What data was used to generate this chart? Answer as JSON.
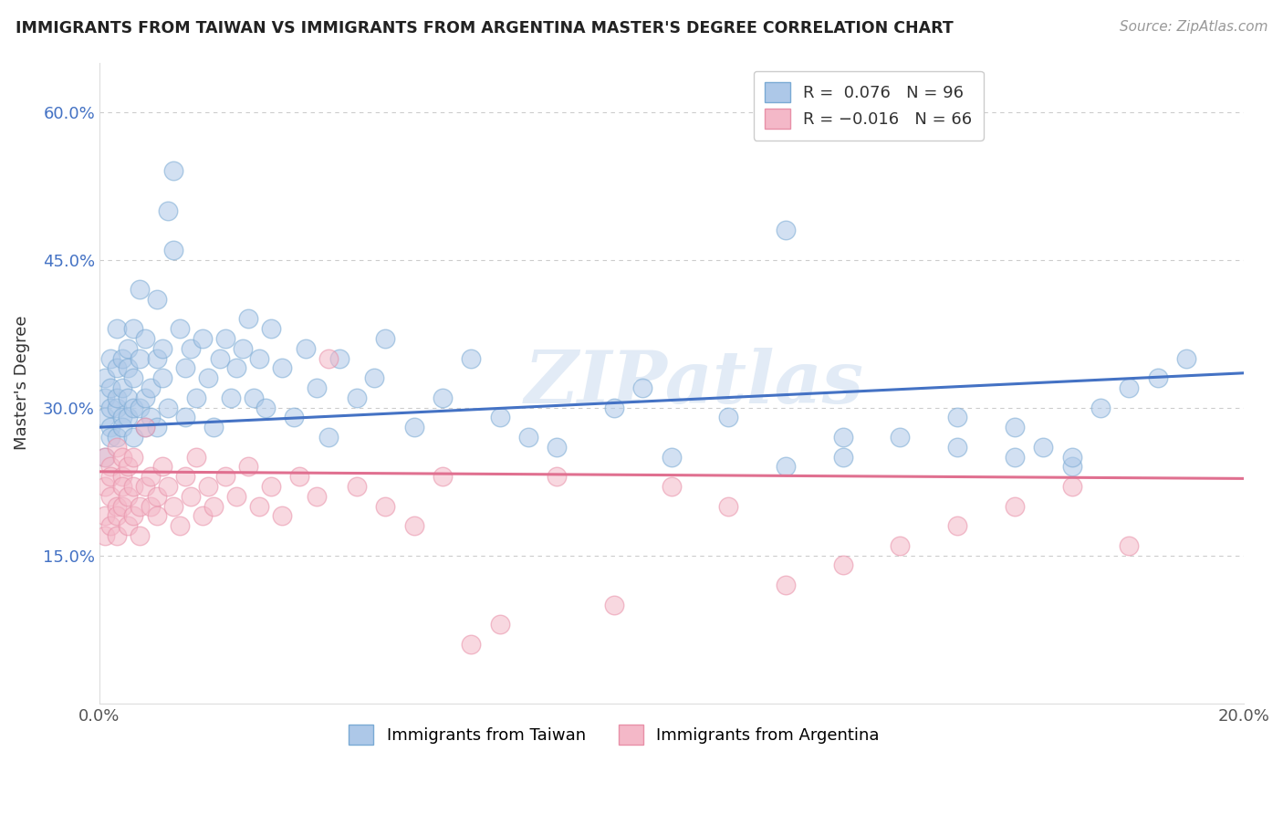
{
  "title": "IMMIGRANTS FROM TAIWAN VS IMMIGRANTS FROM ARGENTINA MASTER'S DEGREE CORRELATION CHART",
  "source": "Source: ZipAtlas.com",
  "ylabel": "Master's Degree",
  "xlim": [
    0.0,
    0.2
  ],
  "ylim": [
    0.0,
    0.65
  ],
  "taiwan_R": 0.076,
  "taiwan_N": 96,
  "argentina_R": -0.016,
  "argentina_N": 66,
  "taiwan_face_color": "#adc8e8",
  "taiwan_edge_color": "#7aaad4",
  "argentina_face_color": "#f4b8c8",
  "argentina_edge_color": "#e890a8",
  "taiwan_line_color": "#4472c4",
  "argentina_line_color": "#e07090",
  "watermark": "ZIPatlas",
  "legend_label_taiwan": "Immigrants from Taiwan",
  "legend_label_argentina": "Immigrants from Argentina",
  "tw_line_x0": 0.0,
  "tw_line_y0": 0.28,
  "tw_line_x1": 0.2,
  "tw_line_y1": 0.335,
  "ar_line_x0": 0.0,
  "ar_line_y0": 0.235,
  "ar_line_x1": 0.2,
  "ar_line_y1": 0.228,
  "taiwan_scatter_x": [
    0.001,
    0.001,
    0.001,
    0.001,
    0.002,
    0.002,
    0.002,
    0.002,
    0.002,
    0.003,
    0.003,
    0.003,
    0.003,
    0.003,
    0.004,
    0.004,
    0.004,
    0.004,
    0.005,
    0.005,
    0.005,
    0.005,
    0.006,
    0.006,
    0.006,
    0.006,
    0.007,
    0.007,
    0.007,
    0.008,
    0.008,
    0.008,
    0.009,
    0.009,
    0.01,
    0.01,
    0.01,
    0.011,
    0.011,
    0.012,
    0.012,
    0.013,
    0.013,
    0.014,
    0.015,
    0.015,
    0.016,
    0.017,
    0.018,
    0.019,
    0.02,
    0.021,
    0.022,
    0.023,
    0.024,
    0.025,
    0.026,
    0.027,
    0.028,
    0.029,
    0.03,
    0.032,
    0.034,
    0.036,
    0.038,
    0.04,
    0.042,
    0.045,
    0.048,
    0.05,
    0.055,
    0.06,
    0.065,
    0.07,
    0.075,
    0.08,
    0.09,
    0.095,
    0.1,
    0.11,
    0.12,
    0.13,
    0.14,
    0.15,
    0.16,
    0.17,
    0.175,
    0.18,
    0.185,
    0.19,
    0.12,
    0.13,
    0.15,
    0.16,
    0.165,
    0.17
  ],
  "taiwan_scatter_y": [
    0.29,
    0.31,
    0.25,
    0.33,
    0.3,
    0.28,
    0.35,
    0.27,
    0.32,
    0.34,
    0.3,
    0.27,
    0.38,
    0.31,
    0.35,
    0.29,
    0.32,
    0.28,
    0.36,
    0.31,
    0.29,
    0.34,
    0.3,
    0.38,
    0.33,
    0.27,
    0.35,
    0.3,
    0.42,
    0.31,
    0.28,
    0.37,
    0.32,
    0.29,
    0.35,
    0.41,
    0.28,
    0.33,
    0.36,
    0.3,
    0.5,
    0.54,
    0.46,
    0.38,
    0.29,
    0.34,
    0.36,
    0.31,
    0.37,
    0.33,
    0.28,
    0.35,
    0.37,
    0.31,
    0.34,
    0.36,
    0.39,
    0.31,
    0.35,
    0.3,
    0.38,
    0.34,
    0.29,
    0.36,
    0.32,
    0.27,
    0.35,
    0.31,
    0.33,
    0.37,
    0.28,
    0.31,
    0.35,
    0.29,
    0.27,
    0.26,
    0.3,
    0.32,
    0.25,
    0.29,
    0.24,
    0.25,
    0.27,
    0.26,
    0.25,
    0.24,
    0.3,
    0.32,
    0.33,
    0.35,
    0.48,
    0.27,
    0.29,
    0.28,
    0.26,
    0.25
  ],
  "argentina_scatter_x": [
    0.001,
    0.001,
    0.001,
    0.001,
    0.002,
    0.002,
    0.002,
    0.002,
    0.003,
    0.003,
    0.003,
    0.003,
    0.004,
    0.004,
    0.004,
    0.004,
    0.005,
    0.005,
    0.005,
    0.006,
    0.006,
    0.006,
    0.007,
    0.007,
    0.008,
    0.008,
    0.009,
    0.009,
    0.01,
    0.01,
    0.011,
    0.012,
    0.013,
    0.014,
    0.015,
    0.016,
    0.017,
    0.018,
    0.019,
    0.02,
    0.022,
    0.024,
    0.026,
    0.028,
    0.03,
    0.032,
    0.035,
    0.038,
    0.04,
    0.045,
    0.05,
    0.055,
    0.06,
    0.065,
    0.07,
    0.08,
    0.09,
    0.1,
    0.11,
    0.12,
    0.13,
    0.14,
    0.15,
    0.16,
    0.17,
    0.18
  ],
  "argentina_scatter_y": [
    0.22,
    0.19,
    0.25,
    0.17,
    0.21,
    0.24,
    0.18,
    0.23,
    0.2,
    0.26,
    0.19,
    0.17,
    0.23,
    0.2,
    0.22,
    0.25,
    0.18,
    0.21,
    0.24,
    0.22,
    0.19,
    0.25,
    0.2,
    0.17,
    0.22,
    0.28,
    0.2,
    0.23,
    0.21,
    0.19,
    0.24,
    0.22,
    0.2,
    0.18,
    0.23,
    0.21,
    0.25,
    0.19,
    0.22,
    0.2,
    0.23,
    0.21,
    0.24,
    0.2,
    0.22,
    0.19,
    0.23,
    0.21,
    0.35,
    0.22,
    0.2,
    0.18,
    0.23,
    0.06,
    0.08,
    0.23,
    0.1,
    0.22,
    0.2,
    0.12,
    0.14,
    0.16,
    0.18,
    0.2,
    0.22,
    0.16
  ]
}
